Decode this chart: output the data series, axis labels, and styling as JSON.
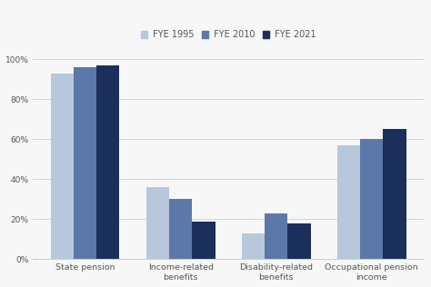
{
  "categories": [
    "State pension",
    "Income-related\nbenefits",
    "Disability-related\nbenefits",
    "Occupational pension\nincome"
  ],
  "series": [
    {
      "label": " FYE 1995",
      "values": [
        93,
        36,
        13,
        57
      ],
      "color": "#b8c8dc"
    },
    {
      "label": " FYE 2010",
      "values": [
        96,
        30,
        23,
        60
      ],
      "color": "#5b78a8"
    },
    {
      "label": " FYE 2021",
      "values": [
        97,
        19,
        18,
        65
      ],
      "color": "#1a2f5a"
    }
  ],
  "ylim": [
    0,
    105
  ],
  "yticks": [
    0,
    20,
    40,
    60,
    80,
    100
  ],
  "ytick_labels": [
    "0%",
    "20%",
    "40%",
    "60%",
    "80%",
    "100%"
  ],
  "background_color": "#f7f7f7",
  "bar_width": 0.24,
  "legend_fontsize": 7.0,
  "tick_fontsize": 6.5,
  "xtick_fontsize": 6.8,
  "grid_color": "#d0d0d0",
  "axis_color": "#cccccc"
}
